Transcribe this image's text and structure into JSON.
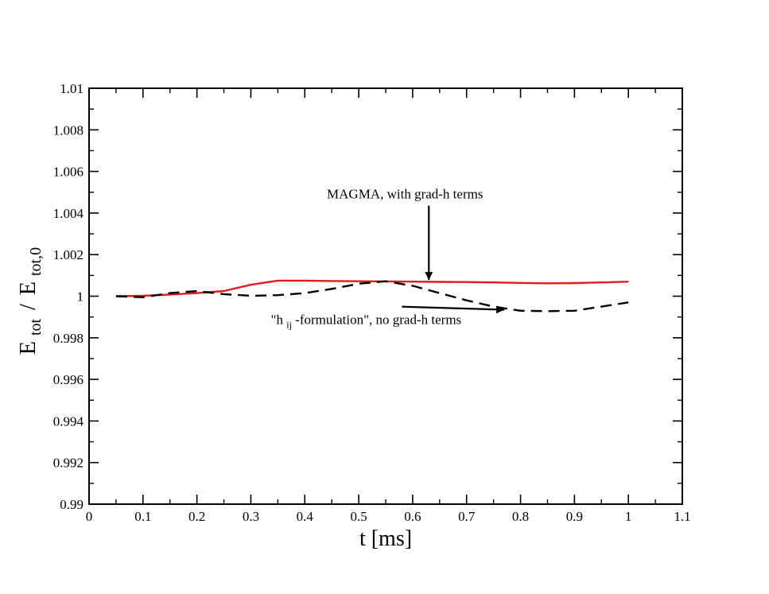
{
  "chart_data": {
    "type": "line",
    "title": "",
    "xlabel": "t [ms]",
    "ylabel": {
      "main_a": "E",
      "sub_a": "tot",
      "slash": "/",
      "main_b": "E",
      "sub_b": "tot,0"
    },
    "xlim": [
      0,
      1.1
    ],
    "ylim": [
      0.99,
      1.01
    ],
    "x_ticks": [
      0,
      0.1,
      0.2,
      0.3,
      0.4,
      0.5,
      0.6,
      0.7,
      0.8,
      0.9,
      1,
      1.1
    ],
    "x_tick_labels": [
      "0",
      "0.1",
      "0.2",
      "0.3",
      "0.4",
      "0.5",
      "0.6",
      "0.7",
      "0.8",
      "0.9",
      "1",
      "1.1"
    ],
    "y_ticks": [
      0.99,
      0.992,
      0.994,
      0.996,
      0.998,
      1.0,
      1.002,
      1.004,
      1.006,
      1.008,
      1.01
    ],
    "y_tick_labels": [
      "0.99",
      "0.992",
      "0.994",
      "0.996",
      "0.998",
      "1",
      "1.002",
      "1.004",
      "1.006",
      "1.008",
      "1.01"
    ],
    "grid": false,
    "series": [
      {
        "name": "MAGMA, with grad-h terms",
        "color": "#e41a1c",
        "dash": "solid",
        "x": [
          0.05,
          0.1,
          0.15,
          0.2,
          0.25,
          0.3,
          0.35,
          0.4,
          0.45,
          0.5,
          0.55,
          0.6,
          0.65,
          0.7,
          0.75,
          0.8,
          0.85,
          0.9,
          0.95,
          1.0
        ],
        "y": [
          1.0,
          1.00002,
          1.00008,
          1.00015,
          1.00025,
          1.00055,
          1.00075,
          1.00075,
          1.00073,
          1.00072,
          1.00071,
          1.0007,
          1.00069,
          1.00068,
          1.00066,
          1.00064,
          1.00062,
          1.00063,
          1.00066,
          1.0007
        ]
      },
      {
        "name": "\"hij-formulation\", no grad-h terms",
        "color": "#000000",
        "dash": "dashed",
        "x": [
          0.05,
          0.1,
          0.15,
          0.2,
          0.25,
          0.3,
          0.35,
          0.4,
          0.45,
          0.5,
          0.55,
          0.6,
          0.65,
          0.7,
          0.75,
          0.8,
          0.85,
          0.9,
          0.95,
          1.0
        ],
        "y": [
          1.0,
          0.99995,
          1.00015,
          1.00025,
          1.0001,
          1.00002,
          1.00005,
          1.00015,
          1.00035,
          1.0006,
          1.00072,
          1.0005,
          1.00015,
          0.9998,
          0.9995,
          0.9993,
          0.99928,
          0.9993,
          0.9995,
          0.9997
        ]
      }
    ],
    "annotations": [
      {
        "text": "MAGMA, with grad-h terms",
        "arrow_from": [
          0.63,
          1.0042
        ],
        "arrow_to": [
          0.63,
          1.00078
        ]
      },
      {
        "text_prefix": "\"h",
        "text_sub": "ij",
        "text_suffix": "-formulation\", no grad-h terms",
        "arrow_from": [
          0.58,
          0.99965
        ],
        "arrow_to": [
          0.77,
          0.99935
        ]
      }
    ]
  }
}
